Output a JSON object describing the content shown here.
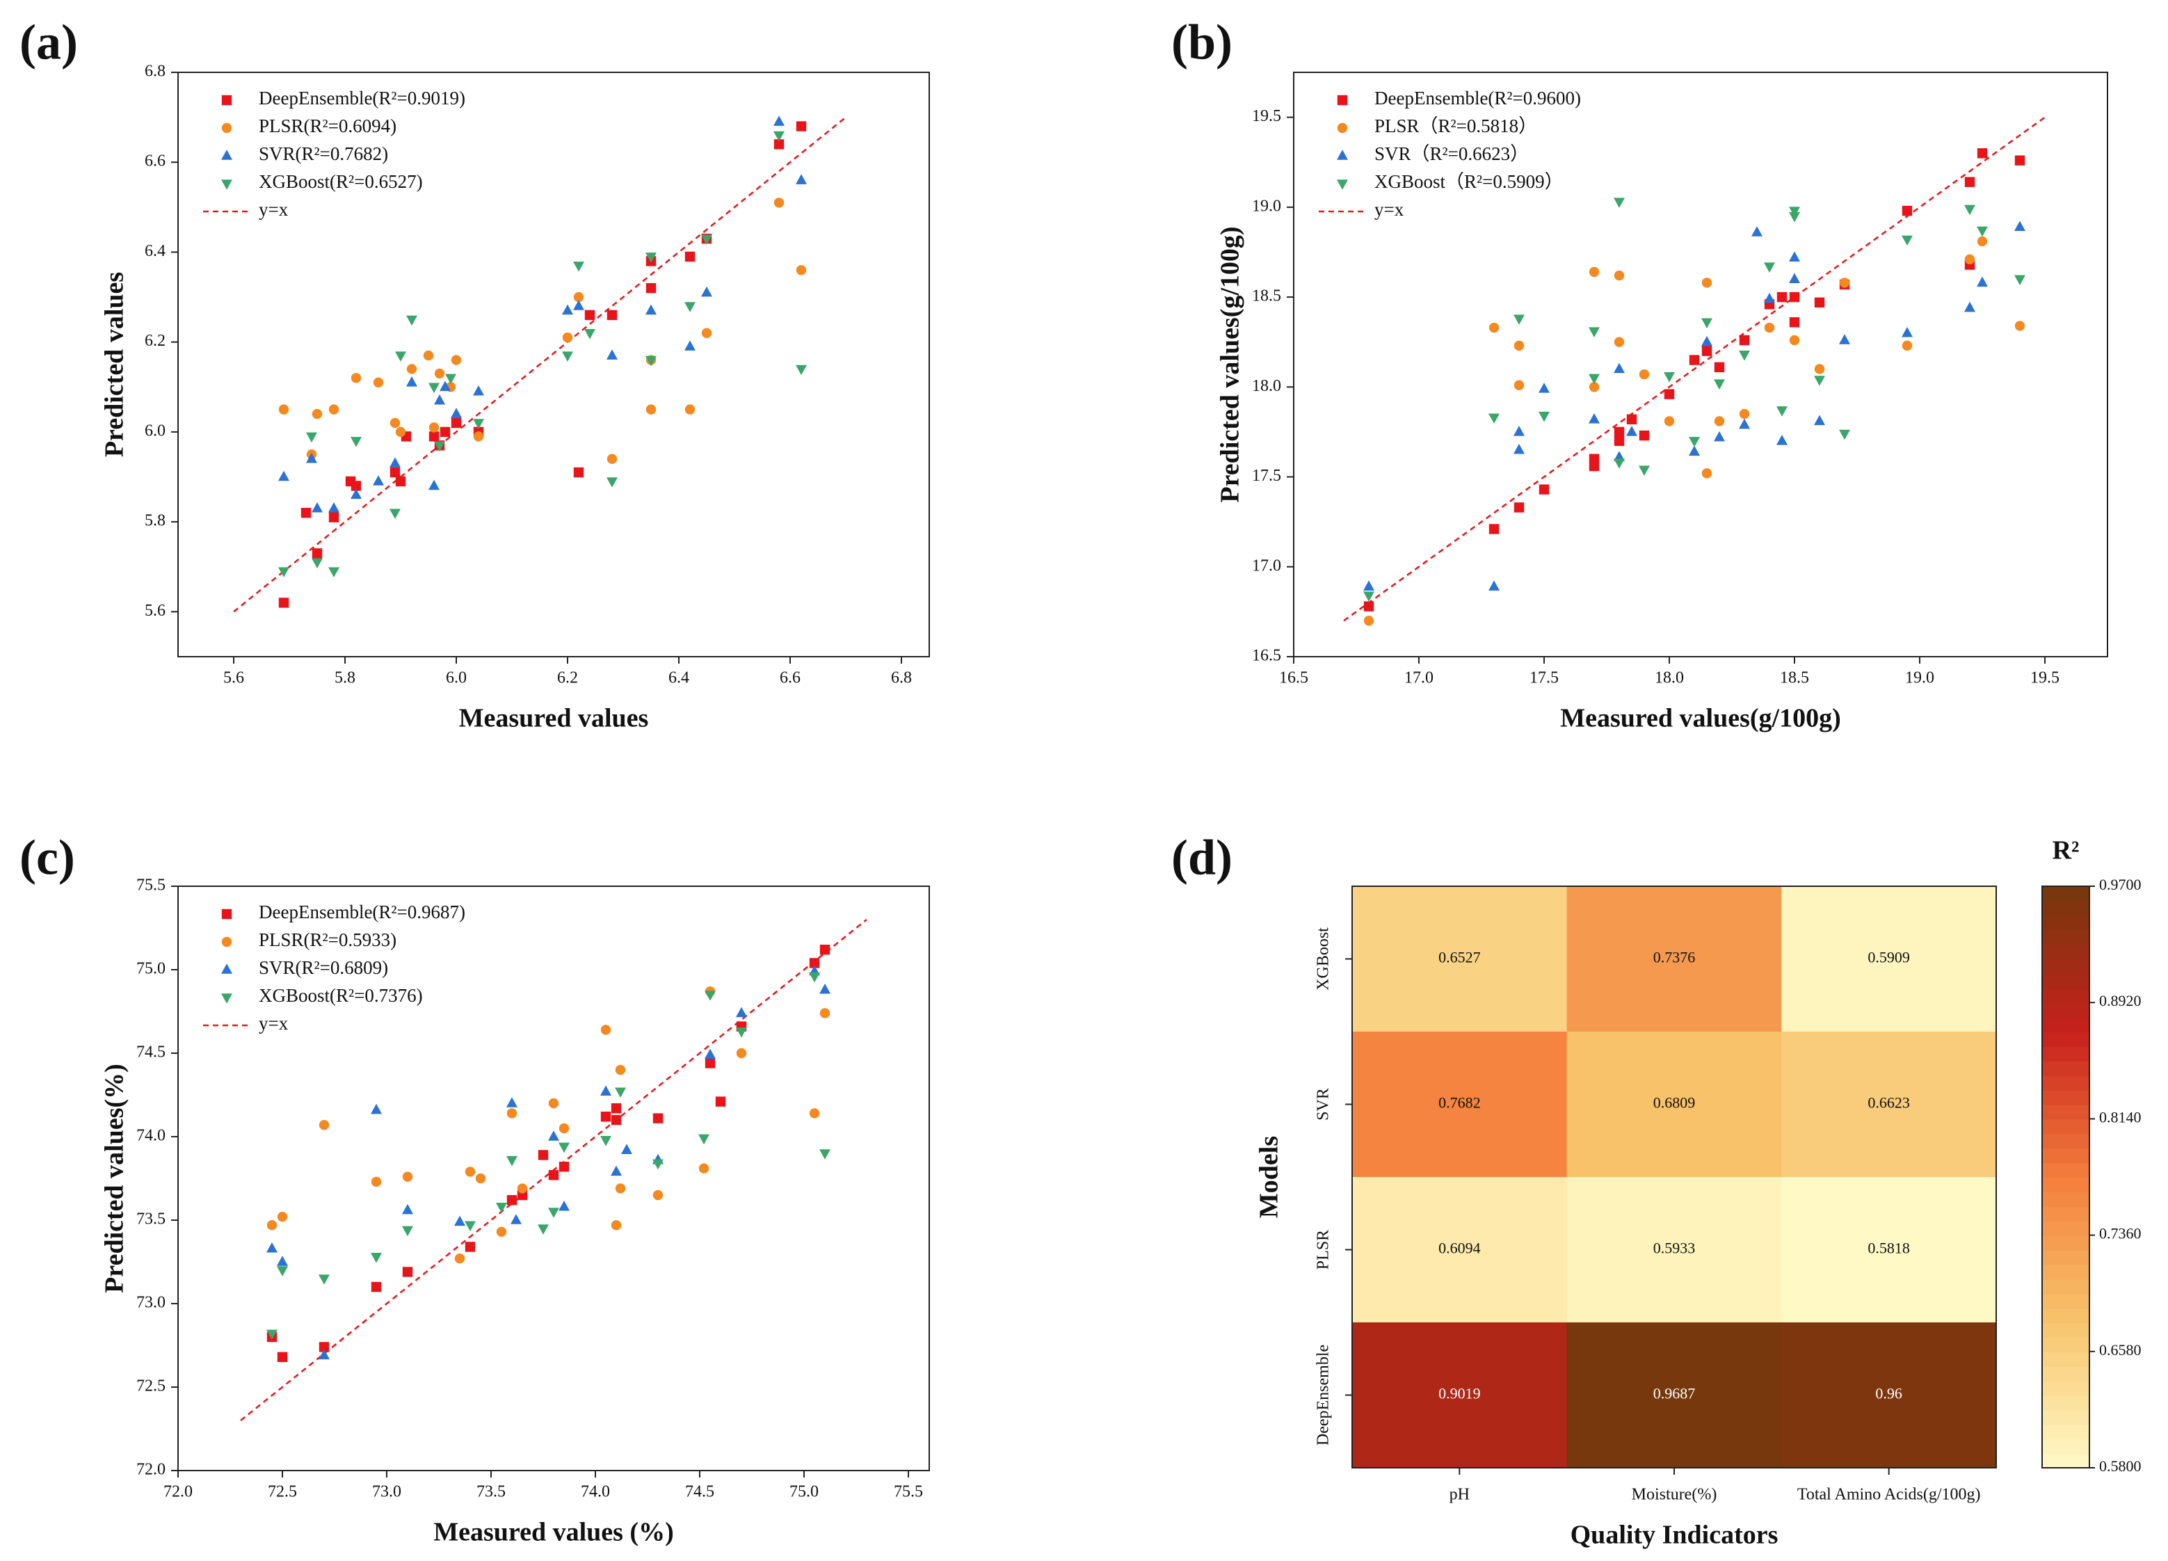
{
  "chart_data": [
    {
      "type": "scatter",
      "label": "(a)",
      "xlabel": "Measured values",
      "ylabel": "Predicted values",
      "xlim": [
        5.5,
        6.85
      ],
      "ylim": [
        5.5,
        6.8
      ],
      "xticks": [
        5.6,
        5.8,
        {
          "value": 6,
          "label": "6.0"
        },
        6.2,
        6.4,
        6.6,
        6.8
      ],
      "yticks": [
        5.6,
        5.8,
        {
          "value": 6,
          "label": "6.0"
        },
        6.2,
        6.4,
        6.6,
        6.8
      ],
      "reference_line": {
        "name": "y=x",
        "color": "#e41a1c",
        "x": [
          5.6,
          6.7
        ],
        "y": [
          5.6,
          6.7
        ]
      },
      "series": [
        {
          "name": "DeepEnsemble(R²=0.9019)",
          "color": "#e8141a",
          "marker": "square",
          "x": [
            5.69,
            5.73,
            5.75,
            5.78,
            5.81,
            5.82,
            5.89,
            5.9,
            5.91,
            5.96,
            5.97,
            5.98,
            6,
            6.04,
            6.22,
            6.24,
            6.28,
            6.35,
            6.35,
            6.42,
            6.45,
            6.58,
            6.62
          ],
          "y": [
            5.62,
            5.82,
            5.73,
            5.81,
            5.89,
            5.88,
            5.91,
            5.89,
            5.99,
            5.99,
            5.97,
            6,
            6.02,
            6,
            5.91,
            6.26,
            6.26,
            6.32,
            6.38,
            6.39,
            6.43,
            6.64,
            6.68
          ]
        },
        {
          "name": "PLSR(R²=0.6094)",
          "color": "#f4891f",
          "marker": "circle",
          "x": [
            5.69,
            5.74,
            5.75,
            5.78,
            5.82,
            5.86,
            5.89,
            5.9,
            5.92,
            5.95,
            5.96,
            5.97,
            5.99,
            6,
            6.04,
            6.2,
            6.22,
            6.28,
            6.35,
            6.35,
            6.42,
            6.45,
            6.58,
            6.62
          ],
          "y": [
            6.05,
            5.95,
            6.04,
            6.05,
            6.12,
            6.11,
            6.02,
            6,
            6.14,
            6.17,
            6.01,
            6.13,
            6.1,
            6.16,
            5.99,
            6.21,
            6.3,
            5.94,
            6.05,
            6.16,
            6.05,
            6.22,
            6.51,
            6.36
          ]
        },
        {
          "name": "SVR(R²=0.7682)",
          "color": "#2a72d4",
          "marker": "triangle-up",
          "x": [
            5.69,
            5.74,
            5.75,
            5.78,
            5.82,
            5.86,
            5.89,
            5.92,
            5.96,
            5.97,
            5.98,
            6,
            6.04,
            6.2,
            6.22,
            6.28,
            6.35,
            6.42,
            6.45,
            6.58,
            6.62
          ],
          "y": [
            5.9,
            5.94,
            5.83,
            5.83,
            5.86,
            5.89,
            5.93,
            6.11,
            5.88,
            6.07,
            6.1,
            6.04,
            6.09,
            6.27,
            6.28,
            6.17,
            6.27,
            6.19,
            6.31,
            6.69,
            6.56
          ]
        },
        {
          "name": "XGBoost(R²=0.6527)",
          "color": "#3aa66a",
          "marker": "triangle-down",
          "x": [
            5.69,
            5.74,
            5.75,
            5.78,
            5.82,
            5.89,
            5.9,
            5.92,
            5.96,
            5.97,
            5.99,
            6.04,
            6.2,
            6.22,
            6.24,
            6.28,
            6.35,
            6.35,
            6.42,
            6.45,
            6.58,
            6.62
          ],
          "y": [
            5.69,
            5.99,
            5.71,
            5.69,
            5.98,
            5.82,
            6.17,
            6.25,
            6.1,
            5.97,
            6.12,
            6.02,
            6.17,
            6.37,
            6.22,
            5.89,
            6.16,
            6.39,
            6.28,
            6.43,
            6.66,
            6.14
          ]
        }
      ]
    },
    {
      "type": "scatter",
      "label": "(b)",
      "xlabel": "Measured values(g/100g)",
      "ylabel": "Predicted values(g/100g)",
      "xlim": [
        16.5,
        19.75
      ],
      "ylim": [
        16.5,
        19.75
      ],
      "xticks": [
        16.5,
        {
          "value": 17,
          "label": "17.0"
        },
        17.5,
        {
          "value": 18,
          "label": "18.0"
        },
        18.5,
        {
          "value": 19,
          "label": "19.0"
        },
        19.5
      ],
      "yticks": [
        16.5,
        {
          "value": 17,
          "label": "17.0"
        },
        17.5,
        {
          "value": 18,
          "label": "18.0"
        },
        18.5,
        {
          "value": 19,
          "label": "19.0"
        },
        19.5
      ],
      "reference_line": {
        "name": "y=x",
        "color": "#e41a1c",
        "x": [
          16.7,
          19.5
        ],
        "y": [
          16.7,
          19.5
        ]
      },
      "series": [
        {
          "name": "DeepEnsemble(R²=0.9600)",
          "color": "#e8141a",
          "marker": "square",
          "x": [
            16.8,
            17.3,
            17.4,
            17.5,
            17.7,
            17.7,
            17.8,
            17.8,
            17.85,
            17.9,
            18,
            18.1,
            18.15,
            18.2,
            18.3,
            18.4,
            18.45,
            18.5,
            18.5,
            18.6,
            18.7,
            18.95,
            19.2,
            19.25,
            19.4,
            19.2
          ],
          "y": [
            16.78,
            17.21,
            17.33,
            17.43,
            17.56,
            17.6,
            17.7,
            17.75,
            17.82,
            17.73,
            17.96,
            18.15,
            18.2,
            18.11,
            18.26,
            18.46,
            18.5,
            18.5,
            18.36,
            18.47,
            18.57,
            18.98,
            19.14,
            19.3,
            19.26,
            18.68
          ]
        },
        {
          "name": "PLSR（R²=0.5818）",
          "color": "#f4891f",
          "marker": "circle",
          "x": [
            16.8,
            17.3,
            17.4,
            17.4,
            17.7,
            17.7,
            17.8,
            17.8,
            17.9,
            18,
            18.15,
            18.15,
            18.2,
            18.3,
            18.4,
            18.5,
            18.6,
            18.7,
            18.95,
            19.2,
            19.25,
            19.4
          ],
          "y": [
            16.7,
            18.33,
            18.23,
            18.01,
            18.64,
            18,
            18.62,
            18.25,
            18.07,
            17.81,
            18.58,
            17.52,
            17.81,
            17.85,
            18.33,
            18.26,
            18.1,
            18.58,
            18.23,
            18.71,
            18.81,
            18.34
          ]
        },
        {
          "name": "SVR（R²=0.6623）",
          "color": "#2a72d4",
          "marker": "triangle-up",
          "x": [
            16.8,
            17.3,
            17.4,
            17.4,
            17.5,
            17.7,
            17.8,
            17.8,
            17.85,
            18.1,
            18.15,
            18.2,
            18.3,
            18.35,
            18.4,
            18.45,
            18.5,
            18.5,
            18.6,
            18.7,
            18.95,
            19.2,
            19.25,
            19.4
          ],
          "y": [
            16.89,
            16.89,
            17.65,
            17.75,
            17.99,
            17.82,
            17.61,
            18.1,
            17.75,
            17.64,
            18.25,
            17.72,
            17.79,
            18.86,
            18.49,
            17.7,
            18.72,
            18.6,
            17.81,
            18.26,
            18.3,
            18.44,
            18.58,
            18.89
          ]
        },
        {
          "name": "XGBoost（R²=0.5909）",
          "color": "#3aa66a",
          "marker": "triangle-down",
          "x": [
            16.8,
            17.3,
            17.4,
            17.5,
            17.7,
            17.7,
            17.8,
            17.8,
            17.9,
            18,
            18.1,
            18.15,
            18.2,
            18.3,
            18.4,
            18.45,
            18.5,
            18.5,
            18.6,
            18.7,
            18.95,
            19.2,
            19.25,
            19.4
          ],
          "y": [
            16.84,
            17.83,
            18.38,
            17.84,
            18.31,
            18.05,
            19.03,
            17.58,
            17.54,
            18.06,
            17.7,
            18.36,
            18.02,
            18.18,
            18.67,
            17.87,
            18.98,
            18.95,
            18.04,
            17.74,
            18.82,
            18.99,
            18.87,
            18.6
          ]
        }
      ]
    },
    {
      "type": "scatter",
      "label": "(c)",
      "xlabel": "Measured values (%)",
      "ylabel": "Predicted values(%)",
      "xlim": [
        72,
        75.6
      ],
      "ylim": [
        72,
        75.5
      ],
      "xticks": [
        {
          "value": 72,
          "label": "72.0"
        },
        72.5,
        {
          "value": 73,
          "label": "73.0"
        },
        73.5,
        {
          "value": 74,
          "label": "74.0"
        },
        74.5,
        {
          "value": 75,
          "label": "75.0"
        },
        75.5
      ],
      "yticks": [
        {
          "value": 72,
          "label": "72.0"
        },
        72.5,
        {
          "value": 73,
          "label": "73.0"
        },
        73.5,
        {
          "value": 74,
          "label": "74.0"
        },
        74.5,
        {
          "value": 75,
          "label": "75.0"
        },
        75.5
      ],
      "reference_line": {
        "name": "y=x",
        "color": "#e41a1c",
        "x": [
          72.3,
          75.3
        ],
        "y": [
          72.3,
          75.3
        ]
      },
      "series": [
        {
          "name": "DeepEnsemble(R²=0.9687)",
          "color": "#e8141a",
          "marker": "square",
          "x": [
            72.45,
            72.5,
            72.7,
            72.95,
            73.1,
            73.4,
            73.6,
            73.65,
            73.75,
            73.8,
            73.85,
            74.05,
            74.1,
            74.1,
            74.3,
            74.55,
            74.6,
            74.7,
            75.05,
            75.1
          ],
          "y": [
            72.8,
            72.68,
            72.74,
            73.1,
            73.19,
            73.34,
            73.62,
            73.65,
            73.89,
            73.77,
            73.82,
            74.12,
            74.1,
            74.17,
            74.11,
            74.44,
            74.21,
            74.66,
            75.04,
            75.12
          ]
        },
        {
          "name": "PLSR(R²=0.5933)",
          "color": "#f4891f",
          "marker": "circle",
          "x": [
            72.45,
            72.5,
            72.7,
            72.95,
            73.1,
            73.35,
            73.4,
            73.45,
            73.55,
            73.6,
            73.65,
            73.8,
            73.85,
            74.05,
            74.1,
            74.12,
            74.12,
            74.3,
            74.52,
            74.55,
            74.7,
            75.05,
            75.1
          ],
          "y": [
            73.47,
            73.52,
            74.07,
            73.73,
            73.76,
            73.27,
            73.79,
            73.75,
            73.43,
            74.14,
            73.69,
            74.2,
            74.05,
            74.64,
            73.47,
            74.4,
            73.69,
            73.65,
            73.81,
            74.87,
            74.5,
            74.14,
            74.74
          ]
        },
        {
          "name": "SVR(R²=0.6809)",
          "color": "#2a72d4",
          "marker": "triangle-up",
          "x": [
            72.45,
            72.5,
            72.7,
            72.95,
            73.1,
            73.35,
            73.6,
            73.62,
            73.8,
            73.85,
            74.05,
            74.1,
            74.15,
            74.3,
            74.55,
            74.7,
            75.05,
            75.1
          ],
          "y": [
            73.33,
            73.25,
            72.69,
            74.16,
            73.56,
            73.49,
            74.2,
            73.5,
            74,
            73.58,
            74.27,
            73.79,
            73.92,
            73.86,
            74.49,
            74.74,
            74.99,
            74.88
          ]
        },
        {
          "name": "XGBoost(R²=0.7376)",
          "color": "#3aa66a",
          "marker": "triangle-down",
          "x": [
            72.45,
            72.5,
            72.7,
            72.95,
            73.1,
            73.4,
            73.55,
            73.6,
            73.75,
            73.8,
            73.85,
            74.05,
            74.12,
            74.3,
            74.52,
            74.55,
            74.7,
            75.05,
            75.1
          ],
          "y": [
            72.82,
            73.2,
            73.15,
            73.28,
            73.44,
            73.47,
            73.58,
            73.86,
            73.45,
            73.55,
            73.94,
            73.98,
            74.27,
            73.84,
            73.99,
            74.85,
            74.63,
            74.96,
            73.9
          ]
        }
      ]
    },
    {
      "type": "heatmap",
      "label": "(d)",
      "xlabel": "Quality Indicators",
      "ylabel": "Models",
      "categories": [
        "pH",
        "Moisture(%)",
        "Total Amino Acids(g/100g)"
      ],
      "rows": [
        "XGBoost",
        "SVR",
        "PLSR",
        "DeepEnsemble"
      ],
      "values": [
        [
          0.6527,
          0.7376,
          0.5909
        ],
        [
          0.7682,
          0.6809,
          0.6623
        ],
        [
          0.6094,
          0.5933,
          0.5818
        ],
        [
          0.9019,
          0.9687,
          0.96
        ]
      ],
      "colorbar_title": "R²",
      "zlim": [
        0.58,
        0.97
      ],
      "colorscale": [
        "#fffac8",
        "#f7c46c",
        "#f47f3c",
        "#c7201c",
        "#75380c"
      ],
      "zticks": [
        {
          "value": 0.58,
          "label": "0.5800"
        },
        {
          "value": 0.658,
          "label": "0.6580"
        },
        {
          "value": 0.736,
          "label": "0.7360"
        },
        {
          "value": 0.814,
          "label": "0.8140"
        },
        {
          "value": 0.892,
          "label": "0.8920"
        },
        {
          "value": 0.97,
          "label": "0.9700"
        }
      ]
    }
  ]
}
